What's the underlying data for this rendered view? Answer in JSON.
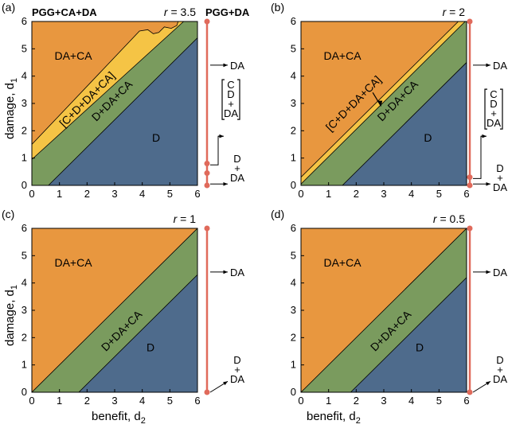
{
  "colors": {
    "DA+CA": "#e8973f",
    "C+D+DA+CA": "#f5c445",
    "D+DA+CA": "#7a9b5e",
    "D": "#4e6b8c",
    "rail": "#e06a5b"
  },
  "header": {
    "left": "PGG+CA+DA",
    "right": "PGG+DA"
  },
  "axes": {
    "xlabel": "benefit, d",
    "xlabel_sub": "2",
    "ylabel": "damage, d",
    "ylabel_sub": "1",
    "ticks": [
      "0",
      "1",
      "2",
      "3",
      "4",
      "5",
      "6"
    ]
  },
  "chart_data": [
    {
      "type": "heatmap",
      "panel": "(a)",
      "r": "r = 3.5",
      "xlim": [
        0,
        6
      ],
      "ylim": [
        0,
        6
      ],
      "regions": [
        {
          "name": "DA+CA",
          "label": "DA+CA",
          "boundary": [
            [
              0,
              1.5
            ],
            [
              4.2,
              5.75
            ],
            [
              5.3,
              6
            ]
          ]
        },
        {
          "name": "C+D+DA+CA",
          "label": "[C+D+DA+CA]",
          "boundary": [
            [
              0,
              0.95
            ],
            [
              5.5,
              6
            ]
          ]
        },
        {
          "name": "D+DA+CA",
          "label": "D+DA+CA",
          "boundary": [
            [
              0.6,
              0
            ],
            [
              6,
              5.4
            ]
          ]
        },
        {
          "name": "D",
          "label": "D"
        }
      ],
      "rail": {
        "points": [
          0,
          0.45,
          0.8,
          6
        ],
        "labels": [
          "DA",
          "[C+D+DA]",
          "D+DA"
        ],
        "label_rows": [
          {
            "text": "DA"
          },
          {
            "stack": [
              "C",
              "D",
              "+",
              "DA"
            ]
          },
          {
            "stack": [
              "D",
              "+",
              "DA"
            ]
          }
        ]
      }
    },
    {
      "type": "heatmap",
      "panel": "(b)",
      "r": "r = 2",
      "xlim": [
        0,
        6
      ],
      "ylim": [
        0,
        6
      ],
      "regions": [
        {
          "name": "DA+CA",
          "label": "DA+CA",
          "boundary": [
            [
              0,
              0.3
            ],
            [
              5.7,
              6
            ]
          ]
        },
        {
          "name": "C+D+DA+CA",
          "label": "[C+D+DA+CA]",
          "boundary": [
            [
              0,
              0.05
            ],
            [
              5.95,
              6
            ]
          ]
        },
        {
          "name": "D+DA+CA",
          "label": "D+DA+CA",
          "boundary": [
            [
              1.5,
              0
            ],
            [
              6,
              4.5
            ]
          ]
        },
        {
          "name": "D",
          "label": "D"
        }
      ],
      "rail": {
        "points": [
          0,
          0.3,
          6
        ],
        "labels": [
          "DA",
          "[C+D+DA]",
          "D+DA"
        ],
        "label_rows": [
          {
            "text": "DA"
          },
          {
            "stack": [
              "C",
              "D",
              "+",
              "DA"
            ]
          },
          {
            "stack": [
              "D",
              "+",
              "DA"
            ]
          }
        ]
      }
    },
    {
      "type": "heatmap",
      "panel": "(c)",
      "r": "r = 1",
      "xlim": [
        0,
        6
      ],
      "ylim": [
        0,
        6
      ],
      "regions": [
        {
          "name": "DA+CA",
          "label": "DA+CA",
          "boundary": [
            [
              0,
              0
            ],
            [
              6,
              6
            ]
          ]
        },
        {
          "name": "D+DA+CA",
          "label": "D+DA+CA",
          "boundary": [
            [
              1.7,
              0
            ],
            [
              6,
              4.3
            ]
          ]
        },
        {
          "name": "D",
          "label": "D"
        }
      ],
      "rail": {
        "points": [
          0,
          6
        ],
        "labels": [
          "DA",
          "D+DA"
        ],
        "label_rows": [
          {
            "text": "DA"
          },
          {
            "stack": [
              "D",
              "+",
              "DA"
            ]
          }
        ]
      }
    },
    {
      "type": "heatmap",
      "panel": "(d)",
      "r": "r = 0.5",
      "xlim": [
        0,
        6
      ],
      "ylim": [
        0,
        6
      ],
      "regions": [
        {
          "name": "DA+CA",
          "label": "DA+CA",
          "boundary": [
            [
              0,
              0
            ],
            [
              6,
              6
            ]
          ]
        },
        {
          "name": "D+DA+CA",
          "label": "D+DA+CA",
          "boundary": [
            [
              1.8,
              0
            ],
            [
              6,
              4.2
            ]
          ]
        },
        {
          "name": "D",
          "label": "D"
        }
      ],
      "rail": {
        "points": [
          0,
          6
        ],
        "labels": [
          "DA",
          "D+DA"
        ],
        "label_rows": [
          {
            "text": "DA"
          },
          {
            "stack": [
              "D",
              "+",
              "DA"
            ]
          }
        ]
      }
    }
  ]
}
